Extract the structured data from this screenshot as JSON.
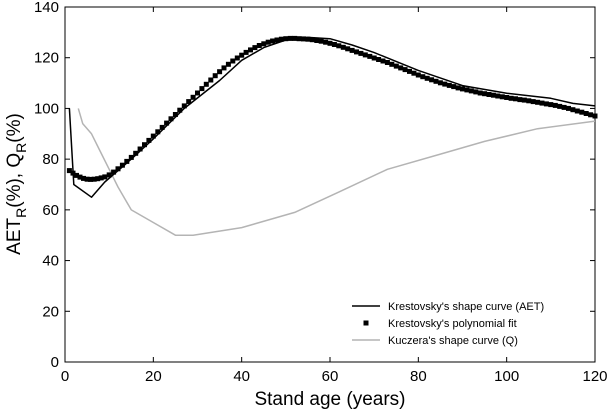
{
  "chart_data": {
    "type": "line",
    "xlabel": "Stand age (years)",
    "ylabel": {
      "main": "AET",
      "sub": "R",
      "rest": "(%), Q",
      "sub2": "R",
      "end": "(%)"
    },
    "xlim": [
      0,
      120
    ],
    "ylim": [
      0,
      140
    ],
    "xticks": [
      "0",
      "20",
      "40",
      "60",
      "80",
      "100",
      "120"
    ],
    "yticks": [
      "0",
      "20",
      "40",
      "60",
      "80",
      "100",
      "120",
      "140"
    ],
    "grid": false,
    "legend_position": "bottom-right",
    "series": [
      {
        "name": "Krestovsky's shape curve (AET)",
        "style": "solid",
        "color": "#000000",
        "x": [
          1,
          2,
          6,
          9,
          15,
          20,
          27,
          35,
          40,
          45,
          50,
          55,
          60,
          65,
          70,
          80,
          90,
          100,
          110,
          115,
          120
        ],
        "y": [
          100,
          70,
          65,
          71,
          80,
          88,
          100,
          111,
          119,
          124,
          127,
          128,
          127.5,
          125,
          122,
          115,
          109,
          106,
          104,
          102,
          101
        ]
      },
      {
        "name": "Krestovsky's polynomial fit",
        "style": "markers",
        "color": "#000000",
        "x": [
          1,
          1.8,
          2.6,
          3.4,
          4.2,
          5,
          5.8,
          6.6,
          7.4,
          8.2,
          9,
          10,
          11,
          12,
          13,
          14,
          15,
          16,
          17,
          18,
          19,
          20,
          21,
          22,
          23,
          24,
          25,
          26,
          27,
          28,
          29,
          30,
          31,
          32,
          33,
          34,
          35,
          36,
          37,
          38,
          39,
          40,
          41,
          42,
          43,
          44,
          45,
          46,
          47,
          48,
          49,
          50,
          51,
          52,
          53,
          54,
          55,
          56,
          57,
          58,
          59,
          60,
          61,
          62,
          63,
          64,
          65,
          66,
          67,
          68,
          69,
          70,
          71,
          72,
          73,
          74,
          75,
          76,
          77,
          78,
          79,
          80,
          81,
          82,
          83,
          84,
          85,
          86,
          87,
          88,
          89,
          90,
          91,
          92,
          93,
          94,
          95,
          96,
          97,
          98,
          99,
          100,
          101,
          102,
          103,
          104,
          105,
          106,
          107,
          108,
          109,
          110,
          111,
          112,
          113,
          114,
          115,
          116,
          117,
          118,
          119,
          120
        ],
        "y": [
          75.5,
          74.5,
          73.6,
          72.9,
          72.4,
          72.1,
          72.0,
          72.1,
          72.3,
          72.6,
          73.0,
          73.8,
          74.9,
          76.2,
          77.6,
          79.1,
          80.7,
          82.3,
          84.0,
          85.7,
          87.4,
          89.1,
          90.8,
          92.5,
          94.2,
          95.9,
          97.6,
          99.3,
          101.0,
          102.7,
          104.4,
          106.1,
          107.8,
          109.5,
          111.2,
          112.9,
          114.5,
          116.0,
          117.4,
          118.7,
          119.9,
          121.0,
          122.1,
          123.1,
          124.0,
          124.8,
          125.5,
          126.1,
          126.6,
          127.0,
          127.3,
          127.5,
          127.6,
          127.6,
          127.5,
          127.4,
          127.3,
          127.1,
          126.8,
          126.5,
          126.1,
          125.7,
          125.2,
          124.7,
          124.1,
          123.5,
          122.9,
          122.3,
          121.7,
          121.1,
          120.5,
          119.9,
          119.3,
          118.7,
          118.1,
          117.4,
          116.7,
          116.0,
          115.3,
          114.6,
          113.9,
          113.2,
          112.5,
          111.9,
          111.3,
          110.7,
          110.1,
          109.6,
          109.1,
          108.6,
          108.1,
          107.7,
          107.3,
          106.9,
          106.5,
          106.1,
          105.8,
          105.5,
          105.2,
          104.9,
          104.6,
          104.3,
          104.0,
          103.8,
          103.5,
          103.3,
          103.0,
          102.7,
          102.4,
          102.1,
          101.8,
          101.5,
          101.2,
          100.8,
          100.4,
          100.0,
          99.5,
          99.0,
          98.5,
          98.0,
          97.5,
          97.0
        ]
      },
      {
        "name": "Kuczera's shape curve (Q)",
        "style": "solid",
        "color": "#b4b4b4",
        "x": [
          3,
          4,
          6,
          8,
          10,
          12,
          15,
          20,
          25,
          29,
          40,
          52,
          62,
          73,
          85,
          95,
          107,
          120
        ],
        "y": [
          100,
          94,
          90,
          83,
          76,
          69,
          60,
          55,
          50,
          50,
          53,
          59,
          67,
          76,
          82,
          87,
          92,
          95
        ]
      }
    ]
  }
}
